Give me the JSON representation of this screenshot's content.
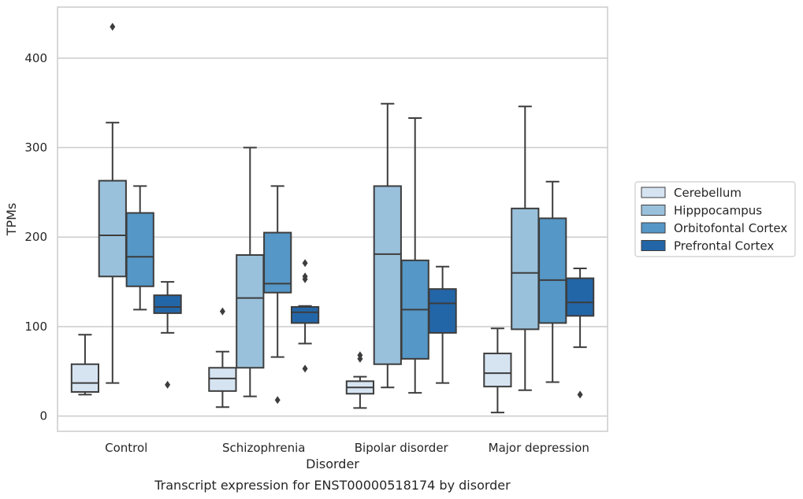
{
  "chart_data": {
    "type": "boxplot",
    "title": "",
    "caption": "Transcript expression for ENST00000518174 by disorder",
    "xlabel": "Disorder",
    "ylabel": "TPMs",
    "ylim": [
      -17,
      457
    ],
    "yticks": [
      0,
      100,
      200,
      300,
      400
    ],
    "grid": "horizontal",
    "legend_position": "right",
    "categories": [
      "Control",
      "Schizophrenia",
      "Bipolar disorder",
      "Major depression"
    ],
    "series": [
      {
        "name": "Cerebellum",
        "color": "#d6e4f2",
        "boxes": [
          {
            "whisker_low": 24,
            "q1": 27,
            "median": 37,
            "q3": 58,
            "whisker_high": 91,
            "outliers": []
          },
          {
            "whisker_low": 10,
            "q1": 28,
            "median": 42,
            "q3": 54,
            "whisker_high": 72,
            "outliers": [
              117
            ]
          },
          {
            "whisker_low": 9,
            "q1": 25,
            "median": 32,
            "q3": 39,
            "whisker_high": 44,
            "outliers": [
              64,
              68
            ]
          },
          {
            "whisker_low": 4,
            "q1": 33,
            "median": 48,
            "q3": 70,
            "whisker_high": 98,
            "outliers": []
          }
        ]
      },
      {
        "name": "Hipppocampus",
        "color": "#9ac1dc",
        "boxes": [
          {
            "whisker_low": 37,
            "q1": 156,
            "median": 202,
            "q3": 263,
            "whisker_high": 328,
            "outliers": [
              435
            ]
          },
          {
            "whisker_low": 22,
            "q1": 54,
            "median": 132,
            "q3": 180,
            "whisker_high": 300,
            "outliers": []
          },
          {
            "whisker_low": 32,
            "q1": 58,
            "median": 181,
            "q3": 257,
            "whisker_high": 349,
            "outliers": []
          },
          {
            "whisker_low": 29,
            "q1": 97,
            "median": 160,
            "q3": 232,
            "whisker_high": 346,
            "outliers": []
          }
        ]
      },
      {
        "name": "Orbitofontal Cortex",
        "color": "#5597c6",
        "boxes": [
          {
            "whisker_low": 119,
            "q1": 145,
            "median": 178,
            "q3": 227,
            "whisker_high": 257,
            "outliers": []
          },
          {
            "whisker_low": 66,
            "q1": 138,
            "median": 148,
            "q3": 205,
            "whisker_high": 257,
            "outliers": [
              18
            ]
          },
          {
            "whisker_low": 26,
            "q1": 64,
            "median": 119,
            "q3": 174,
            "whisker_high": 333,
            "outliers": []
          },
          {
            "whisker_low": 38,
            "q1": 104,
            "median": 152,
            "q3": 221,
            "whisker_high": 262,
            "outliers": []
          }
        ]
      },
      {
        "name": "Prefrontal Cortex",
        "color": "#2366a8",
        "boxes": [
          {
            "whisker_low": 93,
            "q1": 115,
            "median": 122,
            "q3": 135,
            "whisker_high": 150,
            "outliers": [
              35
            ]
          },
          {
            "whisker_low": 81,
            "q1": 104,
            "median": 116,
            "q3": 122,
            "whisker_high": 123,
            "outliers": [
              53,
              153,
              156,
              171
            ]
          },
          {
            "whisker_low": 37,
            "q1": 93,
            "median": 126,
            "q3": 142,
            "whisker_high": 167,
            "outliers": []
          },
          {
            "whisker_low": 77,
            "q1": 112,
            "median": 127,
            "q3": 154,
            "whisker_high": 165,
            "outliers": [
              24
            ]
          }
        ]
      }
    ]
  }
}
